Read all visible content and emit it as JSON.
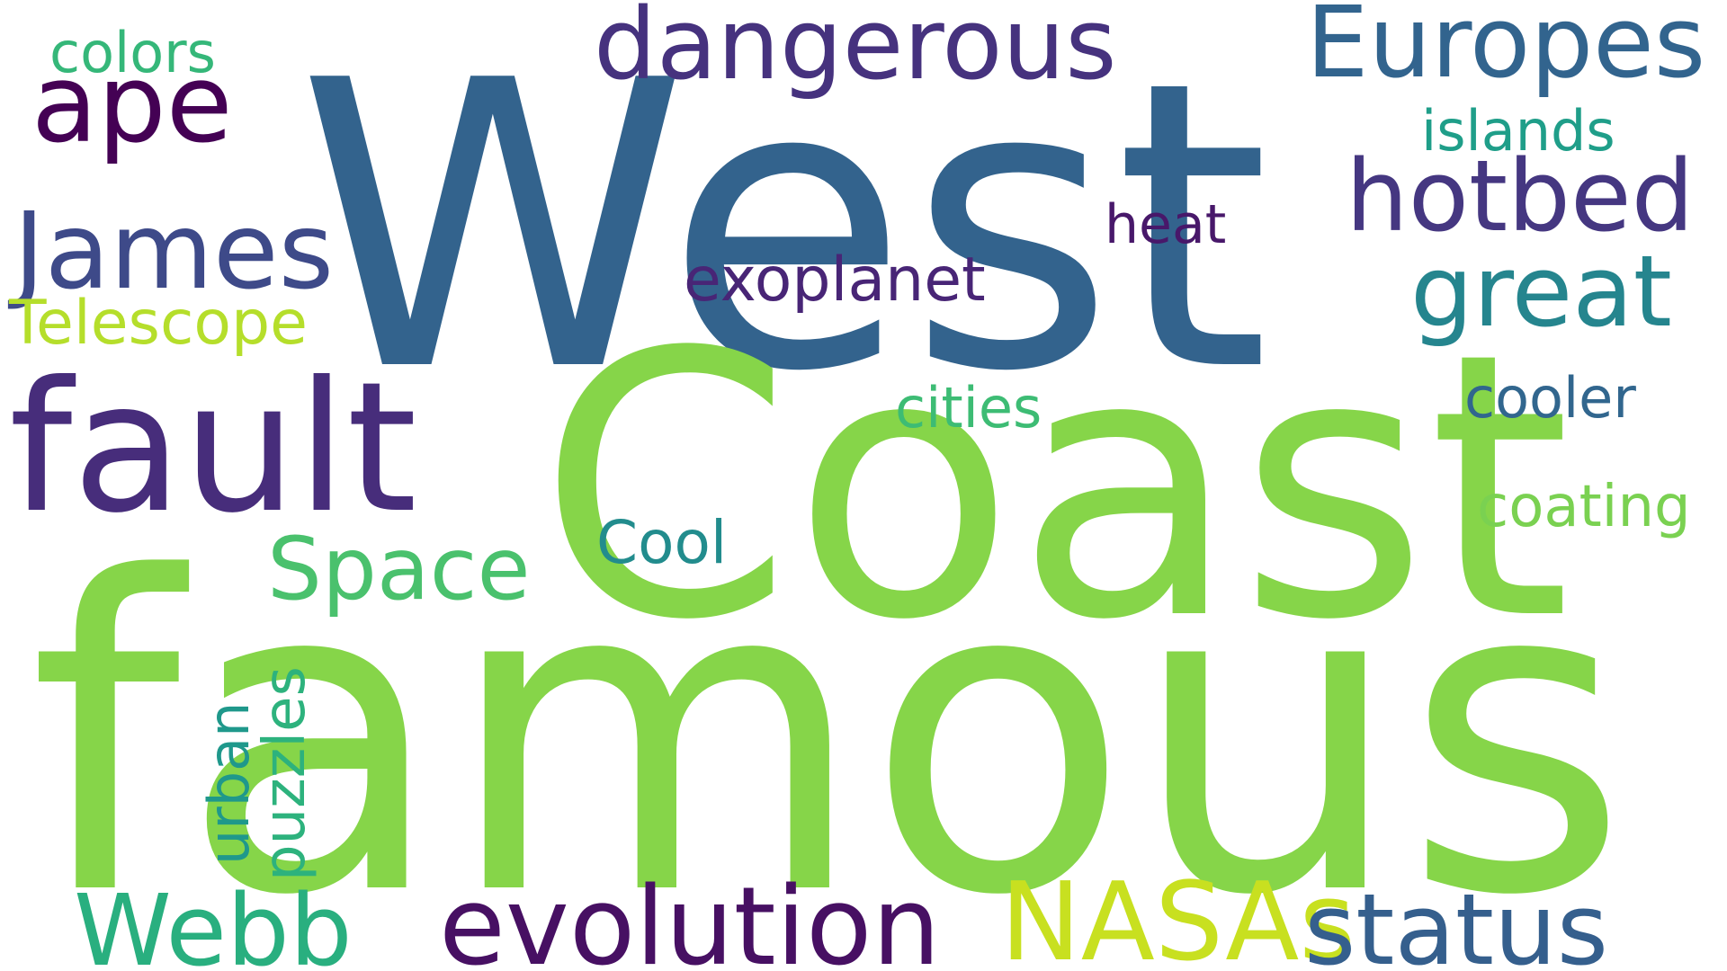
{
  "words": [
    {
      "text": "West",
      "color": "#33638d"
    },
    {
      "text": "Coast",
      "color": "#86d549"
    },
    {
      "text": "famous",
      "color": "#86d549"
    },
    {
      "text": "fault",
      "color": "#472d7b"
    },
    {
      "text": "dangerous",
      "color": "#46327e"
    },
    {
      "text": "Europes",
      "color": "#32648e"
    },
    {
      "text": "hotbed",
      "color": "#453781"
    },
    {
      "text": "great",
      "color": "#25858e"
    },
    {
      "text": "ape",
      "color": "#440154"
    },
    {
      "text": "James",
      "color": "#3e4a89"
    },
    {
      "text": "colors",
      "color": "#35b779"
    },
    {
      "text": "Telescope",
      "color": "#b5de2b"
    },
    {
      "text": "islands",
      "color": "#1f9e89"
    },
    {
      "text": "heat",
      "color": "#48186a"
    },
    {
      "text": "exoplanet",
      "color": "#482576"
    },
    {
      "text": "cities",
      "color": "#3dbc74"
    },
    {
      "text": "cooler",
      "color": "#31668e"
    },
    {
      "text": "coating",
      "color": "#7ad151"
    },
    {
      "text": "Space",
      "color": "#4ac16d"
    },
    {
      "text": "Cool",
      "color": "#228c8d"
    },
    {
      "text": "puzzles",
      "color": "#2db27d"
    },
    {
      "text": "urban",
      "color": "#1f988b"
    },
    {
      "text": "Webb",
      "color": "#29af7f"
    },
    {
      "text": "evolution",
      "color": "#471063"
    },
    {
      "text": "NASAs",
      "color": "#c8e020"
    },
    {
      "text": "status",
      "color": "#355f8d"
    }
  ]
}
